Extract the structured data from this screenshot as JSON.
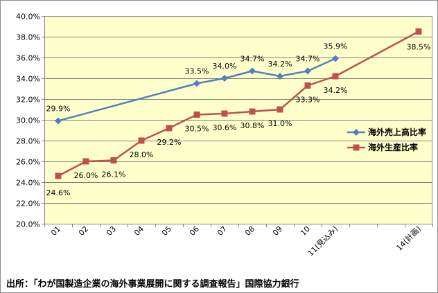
{
  "chart_data": {
    "type": "line",
    "categories": [
      "01",
      "02",
      "03",
      "04",
      "05",
      "06",
      "07",
      "08",
      "09",
      "10",
      "11(見込み)",
      "",
      "",
      "14(計画)"
    ],
    "ylim": [
      20.0,
      40.0
    ],
    "ytick_step": 2.0,
    "ytick_suffix": "%",
    "grid": true,
    "plot_background": "#ffffcc",
    "legend_position": "right",
    "series": [
      {
        "name": "海外売上高比率",
        "color": "#4f81bd",
        "marker": "diamond",
        "points": [
          {
            "x": "01",
            "y": 29.9,
            "label": "29.9%"
          },
          {
            "x": "06",
            "y": 33.5,
            "label": "33.5%"
          },
          {
            "x": "07",
            "y": 34.0,
            "label": "34.0%"
          },
          {
            "x": "08",
            "y": 34.7,
            "label": "34.7%"
          },
          {
            "x": "09",
            "y": 34.2,
            "label": "34.2%"
          },
          {
            "x": "10",
            "y": 34.7,
            "label": "34.7%"
          },
          {
            "x": "11(見込み)",
            "y": 35.9,
            "label": "35.9%"
          }
        ]
      },
      {
        "name": "海外生産比率",
        "color": "#c0504d",
        "marker": "square",
        "points": [
          {
            "x": "01",
            "y": 24.6,
            "label": "24.6%"
          },
          {
            "x": "02",
            "y": 26.0,
            "label": "26.0%"
          },
          {
            "x": "03",
            "y": 26.1,
            "label": "26.1%"
          },
          {
            "x": "04",
            "y": 28.0,
            "label": "28.0%"
          },
          {
            "x": "05",
            "y": 29.2,
            "label": "29.2%"
          },
          {
            "x": "06",
            "y": 30.5,
            "label": "30.5%"
          },
          {
            "x": "07",
            "y": 30.6,
            "label": "30.6%"
          },
          {
            "x": "08",
            "y": 30.8,
            "label": "30.8%"
          },
          {
            "x": "09",
            "y": 31.0,
            "label": "31.0%"
          },
          {
            "x": "10",
            "y": 33.3,
            "label": "33.3%"
          },
          {
            "x": "11(見込み)",
            "y": 34.2,
            "label": "34.2%"
          },
          {
            "x": "14(計画)",
            "y": 38.5,
            "label": "38.5%"
          }
        ]
      }
    ]
  },
  "source_note": "出所：「わが国製造企業の海外事業展開に関する調査報告」国際協力銀行"
}
